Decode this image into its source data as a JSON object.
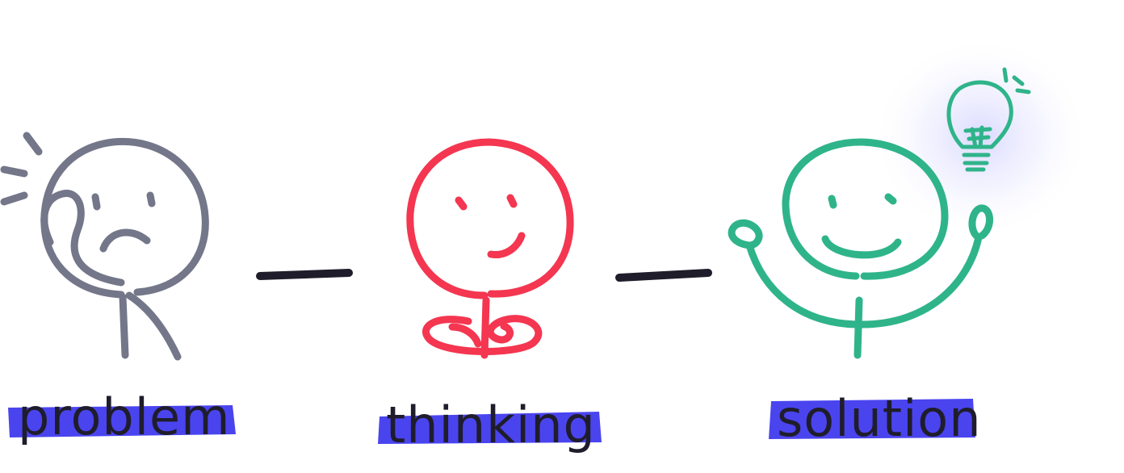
{
  "stages": [
    {
      "id": "problem",
      "label": "problem",
      "color": "#747689"
    },
    {
      "id": "thinking",
      "label": "thinking",
      "color": "#f43650"
    },
    {
      "id": "solution",
      "label": "solution",
      "color": "#2fb48a"
    }
  ],
  "highlight_color": "#4a44ef",
  "text_color": "#1f1d2b",
  "connector_color": "#1f1d2b",
  "glow_color": "#dcdcff",
  "icons": [
    "worried-face-icon",
    "thinking-face-icon",
    "happy-face-icon",
    "lightbulb-icon"
  ]
}
